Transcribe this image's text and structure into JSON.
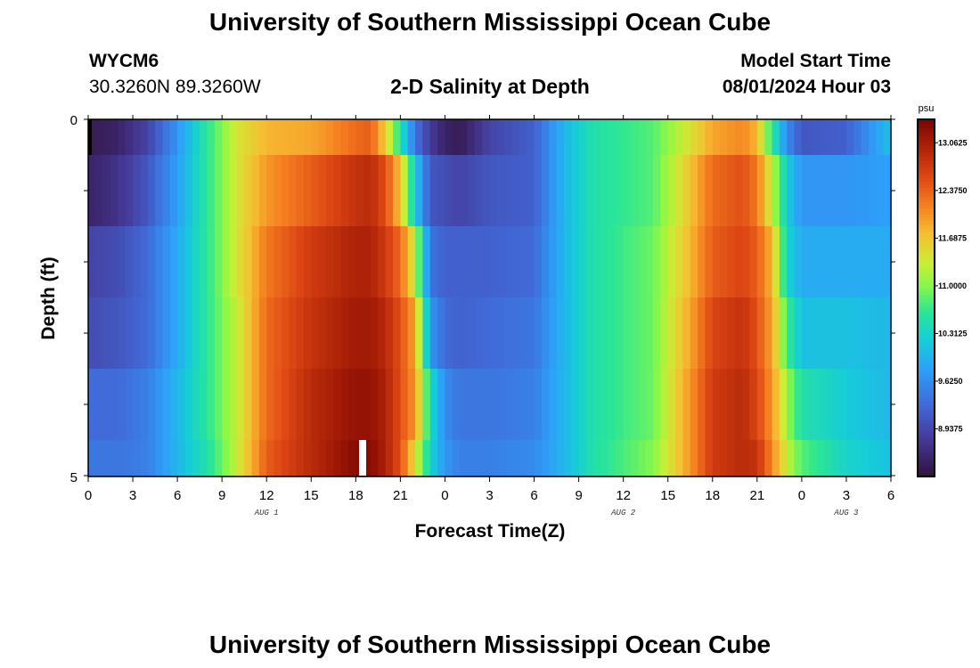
{
  "header": {
    "title": "University of Southern Mississippi Ocean Cube",
    "station": "WYCM6",
    "coords": "30.3260N  89.3260W",
    "subtitle": "2-D Salinity at Depth",
    "start_label": "Model Start Time",
    "start_value": "08/01/2024 Hour 03"
  },
  "footer": {
    "title": "University of Southern Mississippi Ocean Cube"
  },
  "chart_data": {
    "type": "heatmap",
    "title": "2-D Salinity at Depth",
    "xlabel": "Forecast Time(Z)",
    "ylabel": "Depth (ft)",
    "x_range_hours": [
      0,
      54
    ],
    "x_tick_labels": [
      "0",
      "3",
      "6",
      "9",
      "12",
      "15",
      "18",
      "21",
      "0",
      "3",
      "6",
      "9",
      "12",
      "15",
      "18",
      "21",
      "0",
      "3",
      "6"
    ],
    "x_day_labels": [
      {
        "label": "AUG 1",
        "hour": 12
      },
      {
        "label": "AUG 2",
        "hour": 36
      },
      {
        "label": "AUG 3",
        "hour": 51
      }
    ],
    "y_range": [
      0,
      5
    ],
    "y_tick_labels": [
      "0",
      "5"
    ],
    "depth_layers": 5,
    "colorbar": {
      "unit": "psu",
      "range": [
        8.25,
        13.4
      ],
      "tick_labels": [
        "13.0625",
        "12.3750",
        "11.6875",
        "11.0000",
        "10.3125",
        "9.6250",
        "8.9375"
      ],
      "tick_values": [
        13.0625,
        12.375,
        11.6875,
        11.0,
        10.3125,
        9.625,
        8.9375
      ]
    },
    "salinity_keyframes": [
      {
        "hour": 0,
        "values": [
          8.4,
          8.5,
          8.9,
          9.0,
          9.3,
          9.4
        ]
      },
      {
        "hour": 2,
        "values": [
          8.5,
          8.7,
          9.0,
          9.1,
          9.3,
          9.4
        ]
      },
      {
        "hour": 4,
        "values": [
          8.9,
          9.1,
          9.3,
          9.3,
          9.5,
          9.5
        ]
      },
      {
        "hour": 6,
        "values": [
          9.7,
          9.8,
          9.9,
          9.9,
          10.0,
          10.0
        ]
      },
      {
        "hour": 8,
        "values": [
          10.6,
          10.6,
          10.6,
          10.6,
          10.6,
          10.5
        ]
      },
      {
        "hour": 10,
        "values": [
          11.4,
          11.4,
          11.4,
          11.3,
          11.3,
          11.3
        ]
      },
      {
        "hour": 12,
        "values": [
          11.8,
          12.0,
          12.2,
          12.3,
          12.3,
          12.4
        ]
      },
      {
        "hour": 15,
        "values": [
          11.9,
          12.4,
          12.7,
          12.8,
          12.9,
          12.9
        ]
      },
      {
        "hour": 18,
        "values": [
          12.3,
          12.8,
          13.0,
          13.1,
          13.2,
          13.3
        ]
      },
      {
        "hour": 19,
        "values": [
          12.4,
          12.9,
          13.0,
          13.1,
          13.2,
          13.3
        ]
      },
      {
        "hour": 20,
        "values": [
          11.6,
          12.5,
          12.7,
          12.9,
          13.0,
          13.0
        ]
      },
      {
        "hour": 21,
        "values": [
          10.5,
          11.7,
          12.3,
          12.5,
          12.5,
          12.5
        ]
      },
      {
        "hour": 22,
        "values": [
          9.4,
          10.2,
          11.3,
          11.9,
          12.0,
          11.5
        ]
      },
      {
        "hour": 23,
        "values": [
          8.8,
          9.1,
          9.4,
          9.7,
          10.4,
          10.3
        ]
      },
      {
        "hour": 24,
        "values": [
          8.5,
          9.0,
          9.2,
          9.3,
          9.6,
          9.7
        ]
      },
      {
        "hour": 25,
        "values": [
          8.4,
          8.9,
          9.2,
          9.2,
          9.4,
          9.5
        ]
      },
      {
        "hour": 27,
        "values": [
          8.9,
          9.1,
          9.2,
          9.3,
          9.4,
          9.5
        ]
      },
      {
        "hour": 30,
        "values": [
          9.2,
          9.2,
          9.3,
          9.4,
          9.5,
          9.6
        ]
      },
      {
        "hour": 32,
        "values": [
          10.0,
          10.0,
          10.0,
          10.0,
          10.0,
          10.0
        ]
      },
      {
        "hour": 34,
        "values": [
          10.5,
          10.5,
          10.5,
          10.5,
          10.5,
          10.5
        ]
      },
      {
        "hour": 38,
        "values": [
          10.8,
          10.8,
          10.9,
          10.9,
          10.9,
          11.0
        ]
      },
      {
        "hour": 40,
        "values": [
          11.3,
          11.5,
          11.6,
          11.7,
          11.8,
          11.8
        ]
      },
      {
        "hour": 42,
        "values": [
          11.9,
          12.3,
          12.4,
          12.6,
          12.7,
          12.7
        ]
      },
      {
        "hour": 44,
        "values": [
          12.1,
          12.5,
          12.6,
          12.8,
          12.9,
          12.9
        ]
      },
      {
        "hour": 45,
        "values": [
          11.8,
          12.2,
          12.4,
          12.5,
          12.6,
          12.8
        ]
      },
      {
        "hour": 46,
        "values": [
          10.6,
          11.3,
          11.8,
          11.9,
          12.0,
          12.1
        ]
      },
      {
        "hour": 47,
        "values": [
          9.6,
          10.2,
          10.3,
          10.7,
          11.1,
          11.3
        ]
      },
      {
        "hour": 48,
        "values": [
          9.1,
          9.7,
          9.9,
          10.1,
          10.5,
          10.8
        ]
      },
      {
        "hour": 51,
        "values": [
          9.2,
          9.7,
          9.9,
          10.1,
          10.2,
          10.3
        ]
      },
      {
        "hour": 54,
        "values": [
          10.1,
          9.8,
          9.9,
          10.0,
          10.0,
          10.1
        ]
      }
    ]
  }
}
